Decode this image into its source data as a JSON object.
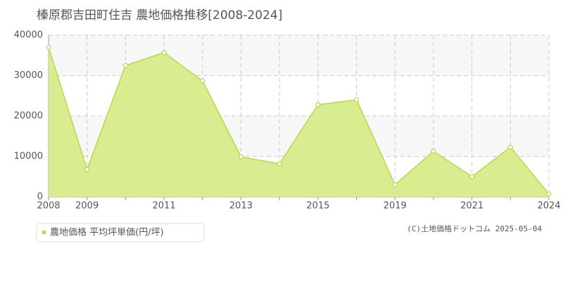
{
  "chart_data": {
    "type": "area",
    "title": "榛原郡吉田町住吉 農地価格推移[2008-2024]",
    "categories": [
      "2008",
      "2009",
      null,
      "2011",
      null,
      "2013",
      null,
      "2015",
      null,
      "2019",
      null,
      "2021",
      null,
      "2024"
    ],
    "series": [
      {
        "name": "農地価格 平均坪単価(円/坪)",
        "color": "#b5d94a",
        "values": [
          37000,
          6800,
          32500,
          35700,
          28700,
          9900,
          8200,
          22800,
          24000,
          3000,
          11300,
          5000,
          12300,
          700
        ]
      }
    ],
    "ylim": [
      0,
      40000
    ],
    "yticks": [
      0,
      10000,
      20000,
      30000,
      40000
    ],
    "grid": true,
    "credit": "(C)土地価格ドットコム 2025-05-04"
  }
}
